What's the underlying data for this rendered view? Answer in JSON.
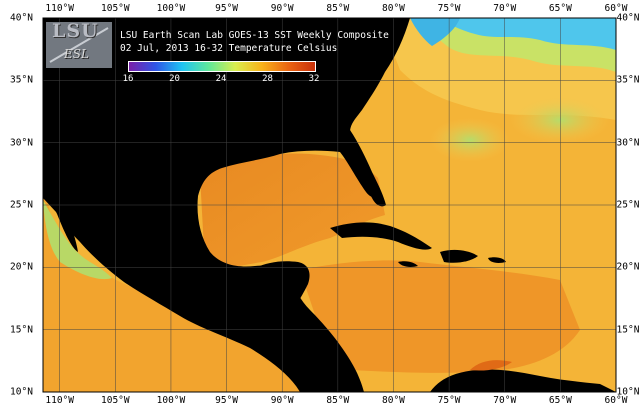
{
  "title": {
    "line1": "LSU Earth Scan Lab GOES-13 SST Weekly Composite",
    "line2": "02 Jul, 2013 16-32 Temperature Celsius"
  },
  "logo": {
    "main": "LSU",
    "sub": "ESL"
  },
  "colorbar": {
    "min": 16,
    "max": 32,
    "ticks": [
      "16",
      "20",
      "24",
      "28",
      "32"
    ],
    "tick_values": [
      16,
      20,
      24,
      28,
      32
    ],
    "colors": [
      "#7a1fa8",
      "#2f55e6",
      "#1fc4f2",
      "#5fe89a",
      "#d9ee4f",
      "#f8b21a",
      "#ea6412",
      "#c8300a"
    ]
  },
  "map": {
    "lon_range": [
      -111.5,
      -60
    ],
    "lat_range": [
      10,
      40
    ],
    "longitude_labels": [
      "110°W",
      "105°W",
      "100°W",
      "95°W",
      "90°W",
      "85°W",
      "80°W",
      "75°W",
      "70°W",
      "65°W",
      "60°W"
    ],
    "longitude_values": [
      -110,
      -105,
      -100,
      -95,
      -90,
      -85,
      -80,
      -75,
      -70,
      -65,
      -60
    ],
    "latitude_labels": [
      "40°N",
      "35°N",
      "30°N",
      "25°N",
      "20°N",
      "15°N",
      "10°N"
    ],
    "latitude_values": [
      40,
      35,
      30,
      25,
      20,
      15,
      10
    ],
    "colors": {
      "land": "#000000",
      "warm_sea": "#f4ae2e",
      "hot_sea": "#e57a1c",
      "mid_sea": "#f6c64c",
      "cool_sea": "#c2e06a",
      "cold_sea": "#4fc6ec",
      "pacific": "#b8d866",
      "grid": "#444444"
    }
  }
}
